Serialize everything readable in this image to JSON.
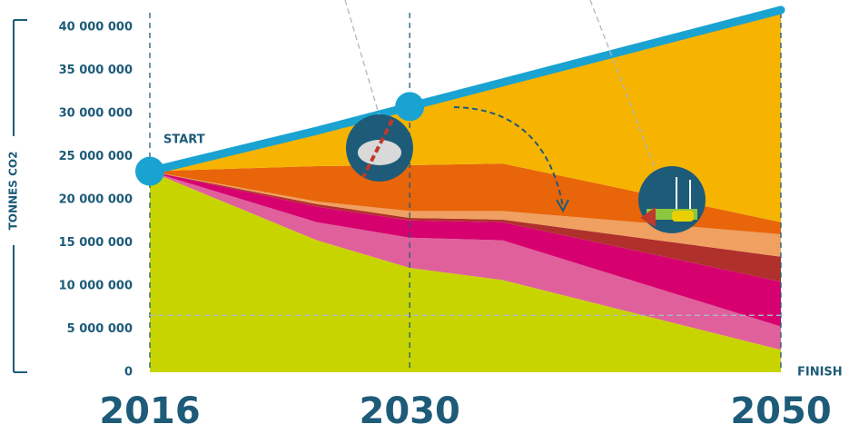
{
  "chart_data": {
    "type": "stacked-area",
    "y_label": "TONNES CO2",
    "annotations": [
      "START",
      "FINISH"
    ],
    "x": [
      2016,
      2025,
      2030,
      2035,
      2050
    ],
    "xlim": [
      2016,
      2050
    ],
    "xticks": [
      2016,
      2030,
      2050
    ],
    "ylim": [
      0,
      42000000
    ],
    "yticks": [
      {
        "value": 0,
        "label": "0"
      },
      {
        "value": 5000000,
        "label": "5 000 000"
      },
      {
        "value": 10000000,
        "label": "10 000 000"
      },
      {
        "value": 15000000,
        "label": "15 000 000"
      },
      {
        "value": 20000000,
        "label": "20 000 000"
      },
      {
        "value": 25000000,
        "label": "25 000 000"
      },
      {
        "value": 30000000,
        "label": "30 000 000"
      },
      {
        "value": 35000000,
        "label": "35 000 000"
      },
      {
        "value": 40000000,
        "label": "40 000 000"
      }
    ],
    "series": [
      {
        "color": "#c8d400",
        "values": [
          23300000,
          15300000,
          12100000,
          10700000,
          2600000
        ]
      },
      {
        "color": "#e0609c",
        "values": [
          0,
          2100000,
          3500000,
          4600000,
          2700000
        ]
      },
      {
        "color": "#d6006f",
        "values": [
          0,
          1800000,
          2000000,
          2100000,
          5200000
        ]
      },
      {
        "color": "#b0302c",
        "values": [
          0,
          300000,
          300000,
          300000,
          2900000
        ]
      },
      {
        "color": "#f0a060",
        "values": [
          0,
          300000,
          800000,
          1000000,
          2600000
        ]
      },
      {
        "color": "#e8650a",
        "values": [
          0,
          4100000,
          5300000,
          5500000,
          1400000
        ]
      },
      {
        "color": "#f6b400",
        "values": [
          0,
          4100000,
          6800000,
          9400000,
          24600000
        ]
      }
    ],
    "line": {
      "color": "#1aa3d1",
      "values": [
        23300000,
        28000000,
        30800000,
        33600000,
        42000000
      ]
    },
    "reference_line": 6600000,
    "grid": true
  }
}
